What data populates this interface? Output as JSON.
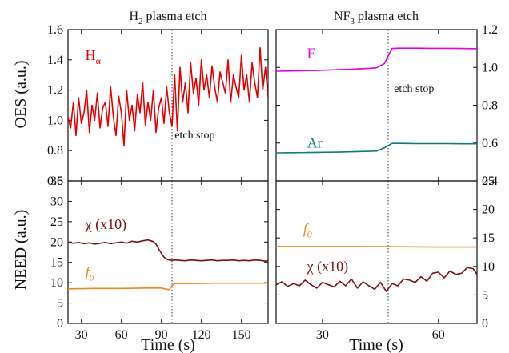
{
  "chart_data": [
    {
      "type": "line",
      "title": "H2 plasma etch",
      "ylabel": "OES (a.u.)",
      "xlabel": "",
      "xlim": [
        20,
        170
      ],
      "ylim": [
        0.6,
        1.6
      ],
      "xticks": [
        30,
        60,
        90,
        120,
        150
      ],
      "yticks": [
        0.6,
        0.8,
        1.0,
        1.2,
        1.4,
        1.6
      ],
      "yaxis_side": "left",
      "etch_stop_x": 98,
      "annotations": [
        {
          "text": "etch stop",
          "x": 100,
          "y": 0.88
        }
      ],
      "series": [
        {
          "name": "Hα",
          "label_x": 33,
          "label_y": 1.4,
          "color": "#e00000",
          "x": [
            20,
            22,
            24,
            26,
            28,
            30,
            32,
            34,
            36,
            38,
            40,
            42,
            44,
            46,
            48,
            50,
            52,
            54,
            56,
            58,
            60,
            62,
            64,
            66,
            68,
            70,
            72,
            74,
            76,
            78,
            80,
            82,
            84,
            86,
            88,
            90,
            92,
            94,
            96,
            98,
            100,
            102,
            104,
            106,
            108,
            110,
            112,
            114,
            116,
            118,
            120,
            122,
            124,
            126,
            128,
            130,
            132,
            134,
            136,
            138,
            140,
            142,
            144,
            146,
            148,
            150,
            152,
            154,
            156,
            158,
            160,
            162,
            164,
            166,
            168,
            170
          ],
          "values": [
            1.02,
            0.95,
            1.12,
            0.9,
            1.15,
            0.98,
            1.05,
            1.2,
            0.92,
            1.1,
            1.0,
            1.18,
            0.95,
            1.08,
            1.12,
            0.96,
            1.22,
            1.02,
            0.9,
            1.16,
            1.05,
            0.83,
            1.2,
            1.0,
            1.1,
            0.93,
            1.17,
            1.05,
            1.25,
            0.97,
            1.12,
            1.0,
            1.2,
            0.92,
            1.08,
            1.15,
            0.98,
            1.22,
            1.05,
            0.96,
            1.3,
            0.93,
            1.35,
            1.12,
            1.25,
            1.05,
            1.38,
            1.18,
            1.28,
            1.1,
            1.4,
            1.2,
            1.3,
            1.15,
            1.36,
            1.22,
            1.12,
            1.32,
            1.25,
            1.18,
            1.4,
            1.12,
            1.3,
            1.22,
            1.15,
            1.43,
            1.2,
            1.3,
            1.12,
            1.38,
            1.25,
            1.15,
            1.48,
            1.2,
            1.35,
            1.15
          ]
        }
      ]
    },
    {
      "type": "line",
      "title": "NF3 plasma etch",
      "ylabel": "",
      "xlabel": "",
      "xlim": [
        18,
        70
      ],
      "ylim": [
        0.4,
        1.2
      ],
      "xticks": [
        30,
        60
      ],
      "yticks": [
        0.4,
        0.6,
        0.8,
        1.0,
        1.2
      ],
      "yaxis_side": "right",
      "etch_stop_x": 47,
      "annotations": [
        {
          "text": "etch stop",
          "x": 48.5,
          "y": 0.87
        }
      ],
      "series": [
        {
          "name": "F",
          "label_x": 26,
          "label_y": 1.05,
          "color": "#e000e0",
          "x": [
            18,
            22,
            26,
            30,
            34,
            38,
            42,
            44,
            46,
            48,
            50,
            54,
            58,
            62,
            66,
            70
          ],
          "values": [
            0.98,
            0.981,
            0.983,
            0.985,
            0.988,
            0.991,
            0.995,
            0.998,
            1.02,
            1.1,
            1.102,
            1.102,
            1.101,
            1.101,
            1.1,
            1.099
          ]
        },
        {
          "name": "Ar",
          "label_x": 26,
          "label_y": 0.575,
          "color": "#0e7a7a",
          "x": [
            18,
            22,
            26,
            30,
            34,
            38,
            42,
            44,
            46,
            48,
            50,
            54,
            58,
            62,
            66,
            70
          ],
          "values": [
            0.548,
            0.549,
            0.55,
            0.551,
            0.552,
            0.554,
            0.556,
            0.558,
            0.575,
            0.598,
            0.598,
            0.597,
            0.597,
            0.597,
            0.596,
            0.596
          ]
        }
      ]
    },
    {
      "type": "line",
      "title": "",
      "ylabel": "NEED (a.u.)",
      "xlabel": "Time (s)",
      "xlim": [
        20,
        170
      ],
      "ylim": [
        0,
        35
      ],
      "xticks": [
        30,
        60,
        90,
        120,
        150
      ],
      "yticks": [
        0,
        5,
        10,
        15,
        20,
        25,
        30,
        35
      ],
      "yaxis_side": "left",
      "etch_stop_x": 98,
      "annotations": [],
      "series": [
        {
          "name": "χ (x10)",
          "label_x": 33,
          "label_y": 23.2,
          "color": "#7a0f14",
          "x": [
            20,
            24,
            28,
            32,
            36,
            40,
            44,
            48,
            52,
            56,
            60,
            64,
            68,
            72,
            76,
            80,
            84,
            86,
            88,
            90,
            92,
            94,
            96,
            98,
            100,
            104,
            108,
            112,
            116,
            120,
            124,
            128,
            132,
            136,
            140,
            144,
            148,
            152,
            156,
            160,
            164,
            168,
            170
          ],
          "values": [
            20.0,
            19.7,
            19.9,
            19.6,
            19.8,
            19.5,
            19.7,
            19.9,
            19.6,
            19.8,
            20.0,
            19.7,
            20.2,
            20.0,
            20.3,
            20.5,
            20.1,
            19.5,
            18.3,
            17.2,
            16.3,
            15.8,
            15.6,
            15.5,
            15.6,
            15.5,
            15.4,
            15.6,
            15.5,
            15.4,
            15.5,
            15.6,
            15.4,
            15.5,
            15.5,
            15.6,
            15.4,
            15.5,
            15.4,
            15.6,
            15.5,
            15.3,
            15.4
          ]
        },
        {
          "name": "f0",
          "label_x": 33,
          "label_y": 11.5,
          "color": "#e88a1a",
          "x": [
            20,
            40,
            60,
            80,
            90,
            94,
            96,
            98,
            100,
            110,
            130,
            150,
            170
          ],
          "values": [
            8.5,
            8.6,
            8.6,
            8.7,
            8.7,
            8.4,
            8.3,
            9.2,
            9.8,
            9.8,
            9.9,
            9.9,
            9.9
          ]
        }
      ]
    },
    {
      "type": "line",
      "title": "",
      "ylabel": "",
      "xlabel": "Time (s)",
      "xlim": [
        18,
        70
      ],
      "ylim": [
        0,
        25
      ],
      "xticks": [
        30,
        60
      ],
      "yticks": [
        0,
        5,
        10,
        15,
        20,
        25
      ],
      "yaxis_side": "right",
      "etch_stop_x": 47,
      "annotations": [],
      "series": [
        {
          "name": "f0",
          "label_x": 25,
          "label_y": 15.8,
          "color": "#e88a1a",
          "x": [
            18,
            30,
            40,
            50,
            60,
            70
          ],
          "values": [
            13.5,
            13.5,
            13.5,
            13.45,
            13.4,
            13.4
          ]
        },
        {
          "name": "χ (x10)",
          "label_x": 26,
          "label_y": 9.2,
          "color": "#7a0f14",
          "x": [
            18,
            19.5,
            21,
            22.5,
            24,
            25.5,
            27,
            28.5,
            30,
            31.5,
            33,
            34.5,
            36,
            37.5,
            39,
            40.5,
            42,
            43.5,
            45,
            46.5,
            48,
            49.5,
            51,
            52.5,
            54,
            55.5,
            57,
            58.5,
            60,
            61.5,
            63,
            64.5,
            66,
            67.5,
            69,
            70
          ],
          "values": [
            6.8,
            7.3,
            6.5,
            7.0,
            6.6,
            7.6,
            6.8,
            6.2,
            7.2,
            6.8,
            6.4,
            7.4,
            6.6,
            7.8,
            6.2,
            7.3,
            6.6,
            6.0,
            7.2,
            5.6,
            7.0,
            6.6,
            7.8,
            7.6,
            7.2,
            8.2,
            7.4,
            8.8,
            9.0,
            8.0,
            9.2,
            8.6,
            8.8,
            9.8,
            9.6,
            8.6
          ]
        }
      ]
    }
  ]
}
